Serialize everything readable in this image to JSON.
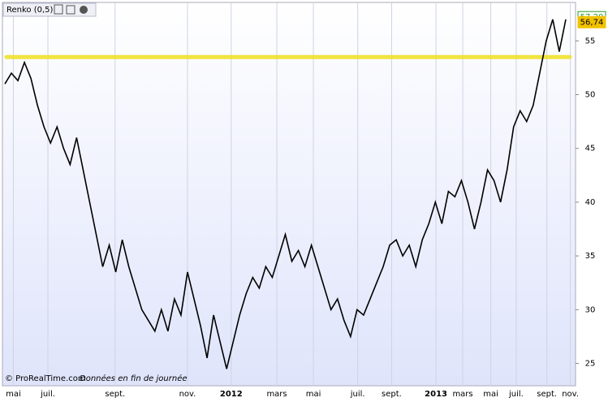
{
  "chart_data": {
    "type": "line",
    "title": "Renko (0,5)",
    "footer": "© ProRealTime.com",
    "footer_note": "Données en fin de journée",
    "series": [
      {
        "name": "Renko (0,5)",
        "color": "#000000",
        "values": [
          51,
          52,
          51.3,
          53,
          51.5,
          49,
          47,
          45.5,
          47,
          45,
          43.5,
          46,
          43,
          40,
          37,
          34,
          36,
          33.5,
          36.5,
          34,
          32,
          30,
          29,
          28,
          30,
          28,
          31,
          29.5,
          33.5,
          31,
          28.5,
          25.5,
          29.5,
          27,
          24.5,
          27,
          29.5,
          31.5,
          33,
          32,
          34,
          33,
          35,
          37,
          34.5,
          35.5,
          34,
          36,
          34,
          32,
          30,
          31,
          29,
          27.5,
          30,
          29.5,
          31,
          32.5,
          34,
          36,
          36.5,
          35,
          36,
          34,
          36.5,
          38,
          40,
          38,
          41,
          40.5,
          42,
          40,
          37.5,
          40,
          43,
          42,
          40,
          43,
          47,
          48.5,
          47.5,
          49,
          52,
          55,
          57,
          54,
          57
        ]
      }
    ],
    "hline": {
      "value": 53.5,
      "color": "#f0e020"
    },
    "price_labels": [
      {
        "value": 57.2,
        "label": "57,20",
        "color": "#2a9a2a"
      },
      {
        "value": 56.74,
        "label": "56,74",
        "color": "#f2c200"
      }
    ],
    "ylim": [
      23,
      58.5
    ],
    "yticks": [
      25,
      30,
      35,
      40,
      45,
      50,
      55
    ],
    "xlim": [
      0,
      86
    ],
    "xticks": [
      {
        "value": 1.3,
        "label": "mai"
      },
      {
        "value": 6.6,
        "label": "juil."
      },
      {
        "value": 16.9,
        "label": "sept."
      },
      {
        "value": 28,
        "label": "nov."
      },
      {
        "value": 34.7,
        "label": "2012"
      },
      {
        "value": 41.7,
        "label": "mars"
      },
      {
        "value": 47.3,
        "label": "mai"
      },
      {
        "value": 54.1,
        "label": "juil."
      },
      {
        "value": 59.3,
        "label": "sept."
      },
      {
        "value": 66.1,
        "label": "2013"
      },
      {
        "value": 70.2,
        "label": "mars"
      },
      {
        "value": 74.5,
        "label": "mai"
      },
      {
        "value": 78.4,
        "label": "juil."
      },
      {
        "value": 83.1,
        "label": "sept."
      },
      {
        "value": 86.7,
        "label": "nov."
      }
    ],
    "grid": true
  }
}
